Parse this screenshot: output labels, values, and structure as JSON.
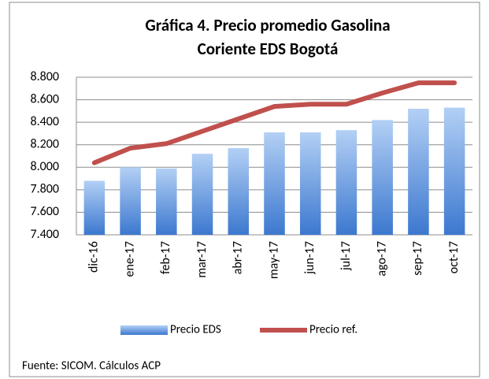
{
  "chart_data": {
    "type": "bar",
    "title": [
      "Gráfica 4. Precio promedio Gasolina",
      "Coriente EDS Bogotá"
    ],
    "categories": [
      "dic-16",
      "ene-17",
      "feb-17",
      "mar-17",
      "abr-17",
      "may-17",
      "jun-17",
      "jul-17",
      "ago-17",
      "sep-17",
      "oct-17"
    ],
    "series": [
      {
        "name": "Precio EDS",
        "type": "bar",
        "color": "#4a86d6",
        "values": [
          7880,
          8000,
          7990,
          8120,
          8170,
          8310,
          8310,
          8330,
          8420,
          8520,
          8530
        ]
      },
      {
        "name": "Precio ref.",
        "type": "line",
        "color": "#c0504d",
        "values": [
          8040,
          8170,
          8210,
          8320,
          8430,
          8540,
          8560,
          8560,
          8660,
          8750,
          8750
        ]
      }
    ],
    "ylim": [
      7400,
      8800
    ],
    "yticks": [
      {
        "value": 7400,
        "label": "7.400"
      },
      {
        "value": 7600,
        "label": "7.600"
      },
      {
        "value": 7800,
        "label": "7.800"
      },
      {
        "value": 8000,
        "label": "8.000"
      },
      {
        "value": 8200,
        "label": "8.200"
      },
      {
        "value": 8400,
        "label": "8.400"
      },
      {
        "value": 8600,
        "label": "8.600"
      },
      {
        "value": 8800,
        "label": "8.800"
      }
    ],
    "grid": true,
    "legend": "bottom",
    "source": "Fuente: SICOM. Cálculos ACP"
  }
}
